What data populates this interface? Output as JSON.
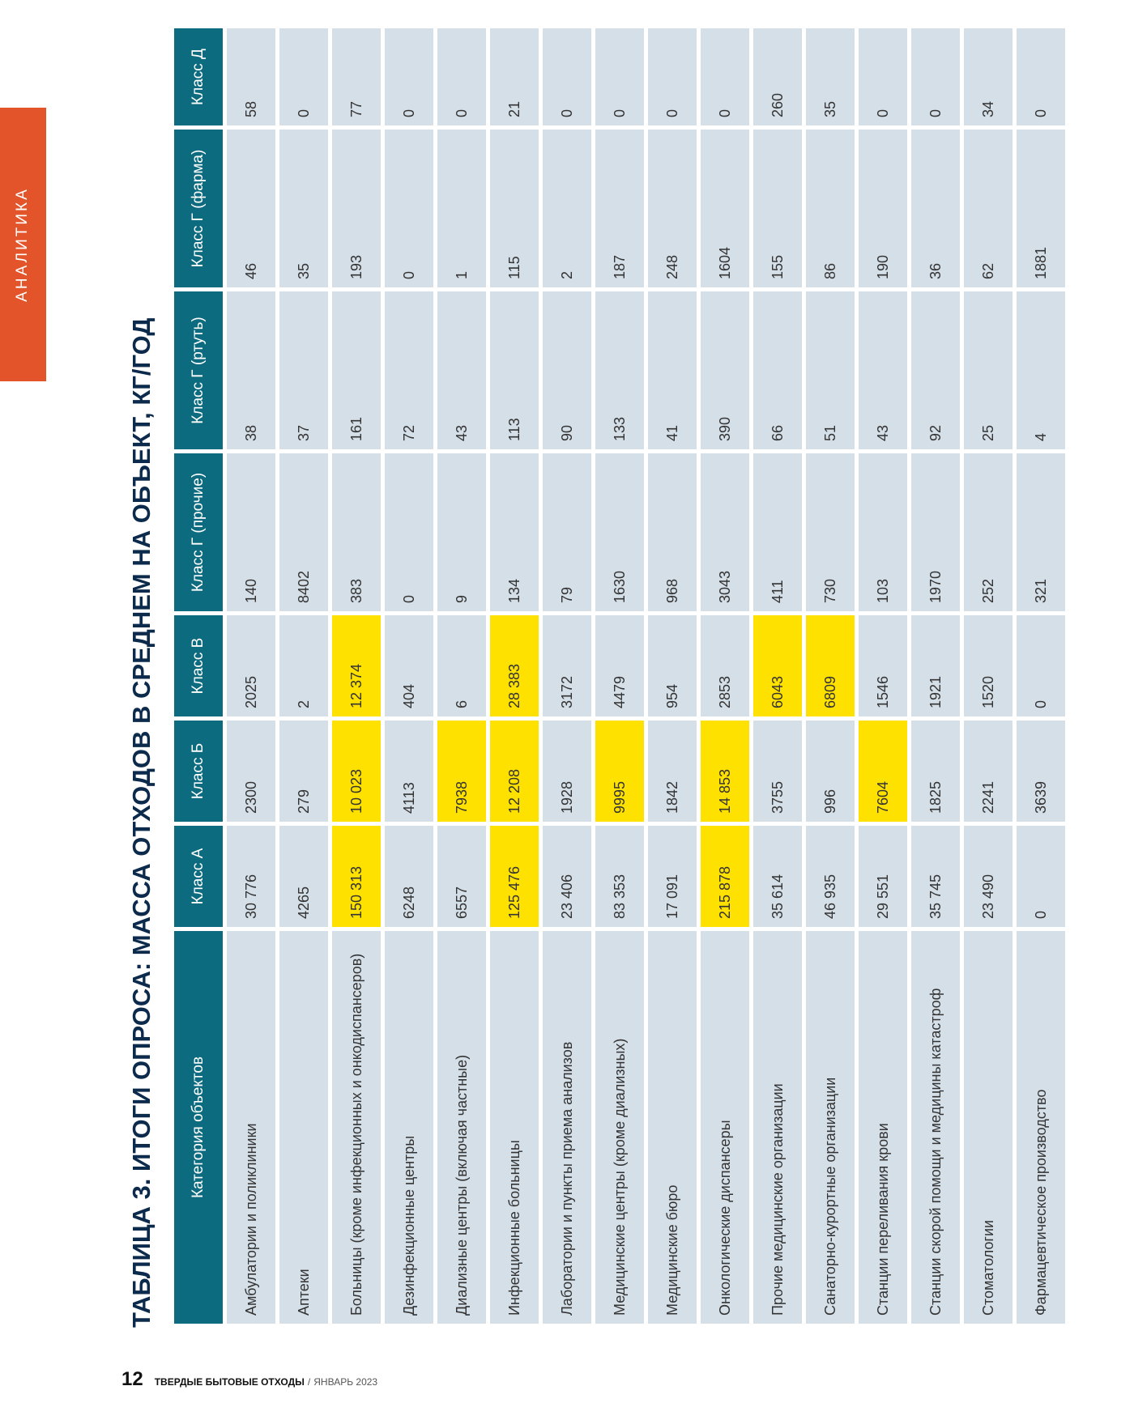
{
  "section": "АНАЛИТИКА",
  "footer": {
    "page_number": "12",
    "magazine": "ТВЕРДЫЕ БЫТОВЫЕ ОТХОДЫ",
    "separator": "/",
    "issue": "ЯНВАРЬ 2023"
  },
  "title": "ТАБЛИЦА 3. ИТОГИ ОПРОСА: МАССА ОТХОДОВ В СРЕДНЕМ НА ОБЪЕКТ, КГ/ГОД",
  "highlight_color": "#ffe100",
  "table": {
    "headers": [
      "Категория объектов",
      "Класс А",
      "Класс Б",
      "Класс В",
      "Класс Г (прочие)",
      "Класс Г (ртуть)",
      "Класс Г (фарма)",
      "Класс Д"
    ],
    "rows": [
      {
        "cells": [
          "Амбулатории и поликлиники",
          "30 776",
          "2300",
          "2025",
          "140",
          "38",
          "46",
          "58"
        ],
        "highlight": []
      },
      {
        "cells": [
          "Аптеки",
          "4265",
          "279",
          "2",
          "8402",
          "37",
          "35",
          "0"
        ],
        "highlight": []
      },
      {
        "cells": [
          "Больницы (кроме инфекционных и онкодиспансеров)",
          "150 313",
          "10 023",
          "12 374",
          "383",
          "161",
          "193",
          "77"
        ],
        "highlight": [
          1,
          2,
          3
        ]
      },
      {
        "cells": [
          "Дезинфекционные центры",
          "6248",
          "4113",
          "404",
          "0",
          "72",
          "0",
          "0"
        ],
        "highlight": []
      },
      {
        "cells": [
          "Диализные центры (включая частные)",
          "6557",
          "7938",
          "6",
          "9",
          "43",
          "1",
          "0"
        ],
        "highlight": [
          2
        ]
      },
      {
        "cells": [
          "Инфекционные больницы",
          "125 476",
          "12 208",
          "28 383",
          "134",
          "113",
          "115",
          "21"
        ],
        "highlight": [
          1,
          2,
          3
        ]
      },
      {
        "cells": [
          "Лаборатории и пункты приема анализов",
          "23 406",
          "1928",
          "3172",
          "79",
          "90",
          "2",
          "0"
        ],
        "highlight": []
      },
      {
        "cells": [
          "Медицинские центры (кроме диализных)",
          "83 353",
          "9995",
          "4479",
          "1630",
          "133",
          "187",
          "0"
        ],
        "highlight": [
          2
        ]
      },
      {
        "cells": [
          "Медицинские бюро",
          "17 091",
          "1842",
          "954",
          "968",
          "41",
          "248",
          "0"
        ],
        "highlight": []
      },
      {
        "cells": [
          "Онкологические диспансеры",
          "215 878",
          "14 853",
          "2853",
          "3043",
          "390",
          "1604",
          "0"
        ],
        "highlight": [
          1,
          2
        ]
      },
      {
        "cells": [
          "Прочие медицинские организации",
          "35 614",
          "3755",
          "6043",
          "411",
          "66",
          "155",
          "260"
        ],
        "highlight": [
          3
        ]
      },
      {
        "cells": [
          "Санаторно-курортные организации",
          "46 935",
          "996",
          "6809",
          "730",
          "51",
          "86",
          "35"
        ],
        "highlight": [
          3
        ]
      },
      {
        "cells": [
          "Станции переливания крови",
          "29 551",
          "7604",
          "1546",
          "103",
          "43",
          "190",
          "0"
        ],
        "highlight": [
          2
        ]
      },
      {
        "cells": [
          "Станции скорой помощи и медицины катастроф",
          "35 745",
          "1825",
          "1921",
          "1970",
          "92",
          "36",
          "0"
        ],
        "highlight": []
      },
      {
        "cells": [
          "Стоматологии",
          "23 490",
          "2241",
          "1520",
          "252",
          "25",
          "62",
          "34"
        ],
        "highlight": []
      },
      {
        "cells": [
          "Фармацевтическое производство",
          "0",
          "3639",
          "0",
          "321",
          "4",
          "1881",
          "0"
        ],
        "highlight": []
      }
    ]
  }
}
